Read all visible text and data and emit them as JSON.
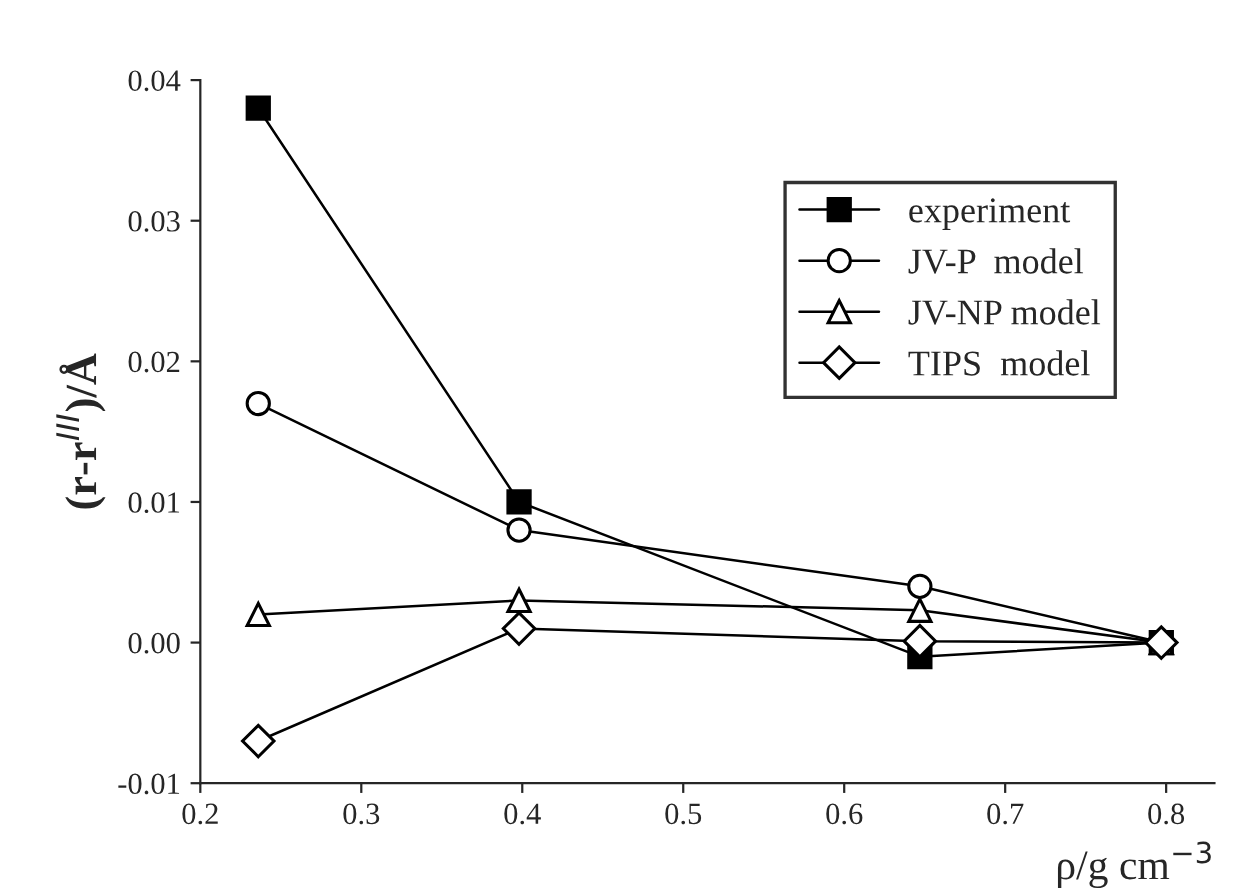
{
  "chart_data": {
    "type": "line",
    "xlabel": "ρ/g cm$^{−3}$",
    "ylabel": "(r-r$^{III}$)/Å",
    "x": [
      0.236,
      0.398,
      0.647,
      0.797
    ],
    "xlim": [
      0.2,
      0.83
    ],
    "xticks": [
      {
        "value": 0.2,
        "label": "0.2"
      },
      {
        "value": 0.3,
        "label": "0.3"
      },
      {
        "value": 0.4,
        "label": "0.4"
      },
      {
        "value": 0.5,
        "label": "0.5"
      },
      {
        "value": 0.6,
        "label": "0.6"
      },
      {
        "value": 0.7,
        "label": "0.7"
      },
      {
        "value": 0.8,
        "label": "0.8"
      }
    ],
    "ylim": [
      -0.01,
      0.04
    ],
    "yticks": [
      {
        "value": -0.01,
        "label": "-0.01"
      },
      {
        "value": 0.0,
        "label": "0.00"
      },
      {
        "value": 0.01,
        "label": "0.01"
      },
      {
        "value": 0.02,
        "label": "0.02"
      },
      {
        "value": 0.03,
        "label": "0.03"
      },
      {
        "value": 0.04,
        "label": "0.04"
      }
    ],
    "grid": false,
    "legend": "top right",
    "series": [
      {
        "name": "experiment",
        "color": "#000000",
        "marker": "square",
        "values": [
          0.038,
          0.01,
          -0.001,
          0.0
        ]
      },
      {
        "name": "JV-P  model",
        "color": "#000000",
        "marker": "circle",
        "values": [
          0.017,
          0.008,
          0.004,
          0.0
        ]
      },
      {
        "name": "JV-NP model",
        "color": "#000000",
        "marker": "triangle",
        "values": [
          0.002,
          0.003,
          0.0023,
          0.0
        ]
      },
      {
        "name": "TIPS  model",
        "color": "#000000",
        "marker": "diamond",
        "values": [
          -0.007,
          0.001,
          0.0001,
          0.0
        ]
      }
    ]
  }
}
